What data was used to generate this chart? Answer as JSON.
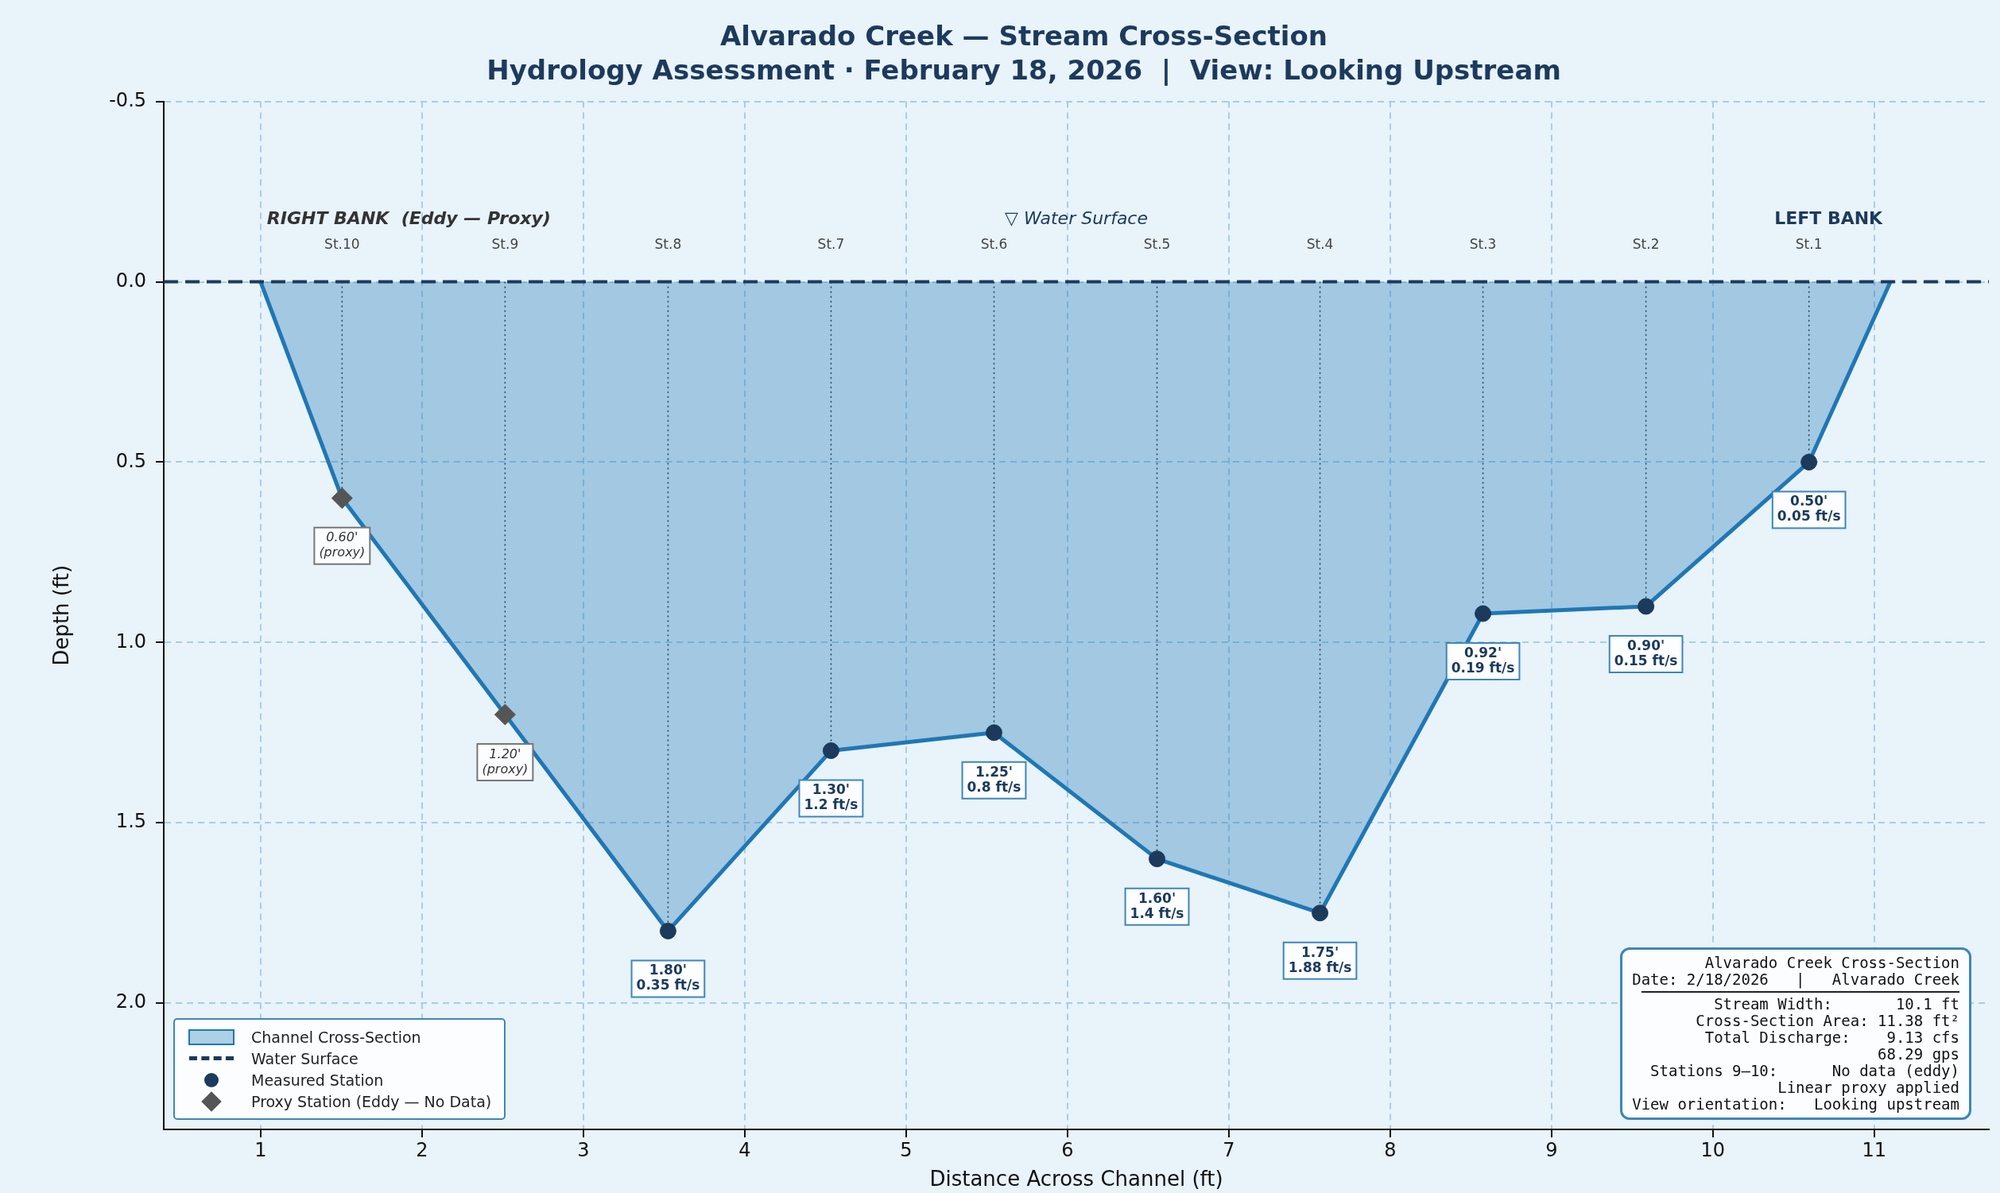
{
  "chart_data": {
    "type": "area",
    "title": "Alvarado Creek — Stream Cross-Section",
    "subtitle": "Hydrology Assessment · February 18, 2026  |  View: Looking Upstream",
    "xlabel": "Distance Across Channel (ft)",
    "ylabel": "Depth (ft)",
    "xlim": [
      0.4,
      11.71
    ],
    "xticks": [
      1,
      2,
      3,
      4,
      5,
      6,
      7,
      8,
      9,
      10,
      11
    ],
    "ylim": [
      2.35,
      -0.5
    ],
    "yticks": [
      {
        "value": -0.5,
        "label": "-0.5"
      },
      {
        "value": 0,
        "label": "0.0"
      },
      {
        "value": 0.5,
        "label": "0.5"
      },
      {
        "value": 1,
        "label": "1.0"
      },
      {
        "value": 1.5,
        "label": "1.5"
      },
      {
        "value": 2,
        "label": "2.0"
      }
    ],
    "grid": true,
    "legend": "bottom left",
    "series": [
      {
        "name": "Channel Cross-Section",
        "color": "#2077b4",
        "marker": "none",
        "x": [
          1,
          1.505,
          2.515,
          3.525,
          4.535,
          5.545,
          6.555,
          7.565,
          8.575,
          9.585,
          10.595,
          11.1
        ],
        "values": [
          0,
          0.6,
          1.2,
          1.8,
          1.3,
          1.25,
          1.6,
          1.75,
          0.92,
          0.9,
          0.5,
          0
        ]
      },
      {
        "name": "Water Surface",
        "type": "line",
        "color": "#1d3a5c",
        "marker": "none",
        "line_style": "dashed",
        "x": [
          0.4,
          11.71
        ],
        "values": [
          0,
          0
        ]
      },
      {
        "name": "Measured Station",
        "type": "lollipop",
        "color": "#1b3a5c",
        "marker": "circle",
        "line_style": "dotted",
        "x": [
          3.525,
          4.535,
          5.545,
          6.555,
          7.565,
          8.575,
          9.585,
          10.595
        ],
        "values": [
          1.8,
          1.3,
          1.25,
          1.6,
          1.75,
          0.92,
          0.9,
          0.5
        ],
        "value_labels": [
          "1.80'\n0.35 ft/s",
          "1.30'\n1.2 ft/s",
          "1.25'\n0.8 ft/s",
          "1.60'\n1.4 ft/s",
          "1.75'\n1.88 ft/s",
          "0.92'\n0.19 ft/s",
          "0.90'\n0.15 ft/s",
          "0.50'\n0.05 ft/s"
        ]
      },
      {
        "name": "Proxy Station (Eddy — No Data)",
        "type": "lollipop",
        "color": "#555555",
        "marker": "diamond",
        "line_style": "dotted",
        "x": [
          1.505,
          2.515
        ],
        "values": [
          0.6,
          1.2
        ],
        "value_labels": [
          "0.60'\n(proxy)",
          "1.20'\n(proxy)"
        ]
      }
    ],
    "annotations": [
      "St.10",
      "St.9",
      "St.8",
      "St.7",
      "St.6",
      "St.5",
      "St.4",
      "St.3",
      "St.2",
      "St.1",
      "RIGHT BANK  (Eddy — Proxy)",
      "LEFT BANK",
      "▽ Water Surface",
      "Alvarado Creek Cross-Section",
      "Date: 2/18/2026   |   Alvarado Creek",
      "Stream Width:       10.1 ft",
      "Cross-Section Area: 11.38 ft²",
      "Total Discharge:    9.13 cfs",
      "68.29 gps",
      "Stations 9–10:      No data (eddy)",
      "Linear proxy applied",
      "View orientation:   Looking upstream"
    ]
  }
}
